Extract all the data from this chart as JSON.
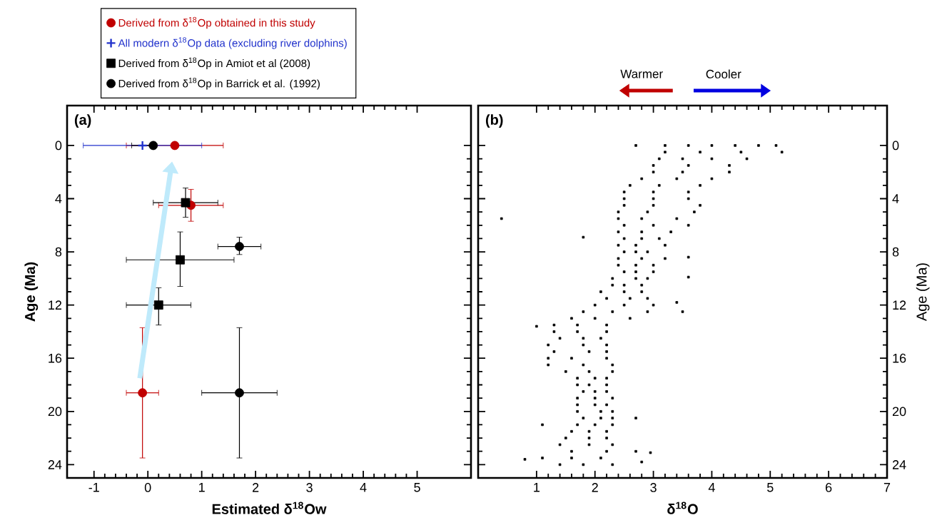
{
  "chart_data": [
    {
      "type": "scatter",
      "xlabel": "Estimated δ$^{18}$Ow",
      "ylabel": "Age (Ma)",
      "xlim": [
        -1.5,
        6
      ],
      "ylim": [
        25,
        -3
      ],
      "xticks": [
        -1,
        0,
        1,
        2,
        3,
        4,
        5
      ],
      "yticks": [
        0,
        4,
        8,
        12,
        16,
        20,
        24
      ],
      "legend": "top",
      "annotations": [
        "(a)"
      ],
      "series": [
        {
          "name": "Derived from δ$^{18}$Op obtained in this study",
          "color": "#c00000",
          "marker": "circle",
          "x": [
            0.5,
            0.8,
            -0.1
          ],
          "values": [
            0,
            4.5,
            18.6
          ],
          "xerrors": [
            [
              -0.4,
              1.4
            ],
            [
              0.2,
              1.4
            ],
            [
              -0.4,
              0.2
            ]
          ],
          "errors": [
            null,
            [
              3.3,
              5.7
            ],
            [
              13.7,
              23.5
            ]
          ]
        },
        {
          "name": "All modern δ$^{18}$Op data (excluding river dolphins)",
          "color": "#2233cc",
          "marker": "cross",
          "x": [
            -0.1
          ],
          "values": [
            0
          ],
          "xerrors": [
            [
              -1.2,
              1.0
            ]
          ],
          "errors": [
            null
          ]
        },
        {
          "name": "Derived from δ$^{18}$Op in Amiot et al (2008)",
          "color": "#000000",
          "marker": "square",
          "x": [
            0.7,
            0.6,
            0.2
          ],
          "values": [
            4.3,
            8.6,
            12
          ],
          "xerrors": [
            [
              0.1,
              1.3
            ],
            [
              -0.4,
              1.6
            ],
            [
              -0.4,
              0.8
            ]
          ],
          "errors": [
            [
              3.2,
              5.4
            ],
            [
              6.5,
              10.6
            ],
            [
              10.7,
              13.5
            ]
          ]
        },
        {
          "name": "Derived from δ$^{18}$Op in Barrick et al. (1992)",
          "color": "#000000",
          "marker": "circle",
          "x": [
            0.1,
            1.7,
            1.7
          ],
          "values": [
            0,
            7.6,
            18.6
          ],
          "xerrors": [
            [
              -0.3,
              0.1
            ],
            [
              1.3,
              2.1
            ],
            [
              1.0,
              2.4
            ]
          ],
          "errors": [
            null,
            [
              6.9,
              8.2
            ],
            [
              13.7,
              23.5
            ]
          ]
        }
      ]
    },
    {
      "type": "scatter",
      "xlabel": "δ$^{18}$O",
      "ylabel": "Age (Ma)",
      "xlim": [
        0,
        7
      ],
      "ylim": [
        25,
        -3
      ],
      "xticks": [
        1,
        2,
        3,
        4,
        5,
        6,
        7
      ],
      "yticks": [
        0,
        4,
        8,
        12,
        16,
        20,
        24
      ],
      "annotations": [
        "(b)",
        "Warmer",
        "Cooler"
      ],
      "color": "#000000",
      "marker": "square",
      "x": [
        2.7,
        3.2,
        3.6,
        4.0,
        4.4,
        4.8,
        5.1,
        3.2,
        3.8,
        4.5,
        5.2,
        3.1,
        3.5,
        4.0,
        4.6,
        3.0,
        3.6,
        4.3,
        3.0,
        3.5,
        4.3,
        2.8,
        3.4,
        4.0,
        2.6,
        3.1,
        3.8,
        2.5,
        3.0,
        3.6,
        2.5,
        3.0,
        3.6,
        2.5,
        3.0,
        3.8,
        2.4,
        2.9,
        3.7,
        2.4,
        2.8,
        3.4,
        2.5,
        3.0,
        3.6,
        2.4,
        2.8,
        3.3,
        2.5,
        2.8,
        3.1,
        2.4,
        2.7,
        3.2,
        2.5,
        2.7,
        2.9,
        2.4,
        2.8,
        3.2,
        2.4,
        2.7,
        3.0,
        2.5,
        2.7,
        3.0,
        2.3,
        2.7,
        2.9,
        2.3,
        2.5,
        2.8,
        2.1,
        2.5,
        2.8,
        2.2,
        2.6,
        2.9,
        2.0,
        2.5,
        3.0,
        1.8,
        2.3,
        2.9,
        1.6,
        2.0,
        2.6,
        1.3,
        1.7,
        2.2,
        1.3,
        1.7,
        2.2,
        1.4,
        1.8,
        2.1,
        1.2,
        1.8,
        2.2,
        1.3,
        1.9,
        2.2,
        1.2,
        1.6,
        2.2,
        1.2,
        1.8,
        2.3,
        1.5,
        1.9,
        2.3,
        1.7,
        2.0,
        2.2,
        1.7,
        1.9,
        2.2,
        1.8,
        2.0,
        2.2,
        1.7,
        2.0,
        2.3,
        1.7,
        2.0,
        2.2,
        1.7,
        2.1,
        2.3,
        1.8,
        2.1,
        2.3,
        1.7,
        2.0,
        2.3,
        1.6,
        1.9,
        2.2,
        1.5,
        1.9,
        2.2,
        1.4,
        1.9,
        2.3,
        1.6,
        2.2,
        2.7,
        1.1,
        1.6,
        2.1,
        1.4,
        1.8,
        2.3,
        0.4,
        1.8,
        1.0,
        3.6,
        3.6,
        3.5,
        3.4,
        1.1,
        2.7,
        0.8,
        2.95,
        2.8
      ],
      "values": [
        0,
        0,
        0,
        0,
        0,
        0,
        0,
        0.5,
        0.5,
        0.5,
        0.5,
        1,
        1,
        1,
        1,
        1.5,
        1.5,
        1.5,
        2,
        2,
        2,
        2.5,
        2.5,
        2.5,
        3,
        3,
        3,
        3.5,
        3.5,
        3.5,
        4,
        4,
        4,
        4.5,
        4.5,
        4.5,
        5,
        5,
        5,
        5.5,
        5.5,
        5.5,
        6,
        6,
        6,
        6.5,
        6.5,
        6.5,
        7,
        7,
        7,
        7.5,
        7.5,
        7.5,
        8,
        8,
        8,
        8.5,
        8.5,
        8.5,
        9,
        9,
        9,
        9.5,
        9.5,
        9.5,
        10,
        10,
        10,
        10.5,
        10.5,
        10.5,
        11,
        11,
        11,
        11.5,
        11.5,
        11.5,
        12,
        12,
        12,
        12.5,
        12.5,
        12.5,
        13,
        13,
        13,
        13.5,
        13.5,
        13.5,
        14,
        14,
        14,
        14.5,
        14.5,
        14.5,
        15,
        15,
        15,
        15.5,
        15.5,
        15.5,
        16,
        16,
        16,
        16.5,
        16.5,
        16.5,
        17,
        17,
        17,
        17.5,
        17.5,
        17.5,
        18,
        18,
        18,
        18.5,
        18.5,
        18.5,
        19,
        19,
        19,
        19.5,
        19.5,
        19.5,
        20,
        20,
        20,
        20.5,
        20.5,
        20.5,
        21,
        21,
        21,
        21.5,
        21.5,
        21.5,
        22,
        22,
        22,
        22.5,
        22.5,
        22.5,
        23,
        23,
        23,
        23.5,
        23.5,
        23.5,
        24,
        24,
        24,
        5.5,
        6.9,
        13.6,
        8.4,
        9.9,
        12.5,
        11.8,
        21,
        20.5,
        23.6,
        23.1,
        23.8
      ]
    }
  ]
}
